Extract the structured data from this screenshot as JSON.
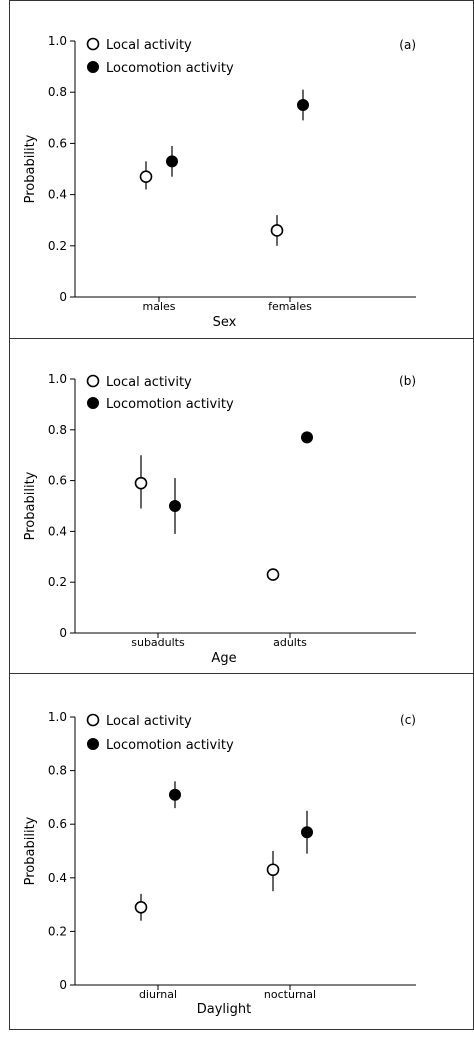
{
  "chart_data": [
    {
      "type": "scatter",
      "panel_label": "(a)",
      "xlabel": "Sex",
      "ylabel": "Probability",
      "categories": [
        "males",
        "females"
      ],
      "ylim": [
        0,
        1.0
      ],
      "yticks": [
        "0",
        "0.2",
        "0.4",
        "0.6",
        "0.8",
        "1.0"
      ],
      "legend": "top-left",
      "series": [
        {
          "name": "Local activity",
          "marker": "open",
          "values": [
            0.47,
            0.26
          ],
          "lower": [
            0.42,
            0.2
          ],
          "upper": [
            0.53,
            0.32
          ]
        },
        {
          "name": "Locomotion activity",
          "marker": "filled",
          "values": [
            0.53,
            0.75
          ],
          "lower": [
            0.47,
            0.69
          ],
          "upper": [
            0.59,
            0.81
          ]
        }
      ]
    },
    {
      "type": "scatter",
      "panel_label": "(b)",
      "xlabel": "Age",
      "ylabel": "Probability",
      "categories": [
        "subadults",
        "adults"
      ],
      "ylim": [
        0,
        1.0
      ],
      "yticks": [
        "0",
        "0.2",
        "0.4",
        "0.6",
        "0.8",
        "1.0"
      ],
      "legend": "top-left",
      "series": [
        {
          "name": "Local activity",
          "marker": "open",
          "values": [
            0.59,
            0.23
          ],
          "lower": [
            0.49,
            0.23
          ],
          "upper": [
            0.7,
            0.23
          ]
        },
        {
          "name": "Locomotion activity",
          "marker": "filled",
          "values": [
            0.5,
            0.77
          ],
          "lower": [
            0.39,
            0.77
          ],
          "upper": [
            0.61,
            0.77
          ]
        }
      ]
    },
    {
      "type": "scatter",
      "panel_label": "(c)",
      "xlabel": "Daylight",
      "ylabel": "Probability",
      "categories": [
        "diurnal",
        "nocturnal"
      ],
      "ylim": [
        0,
        1.0
      ],
      "yticks": [
        "0",
        "0.2",
        "0.4",
        "0.6",
        "0.8",
        "1.0"
      ],
      "legend": "top-left",
      "series": [
        {
          "name": "Local activity",
          "marker": "open",
          "values": [
            0.29,
            0.43
          ],
          "lower": [
            0.24,
            0.35
          ],
          "upper": [
            0.34,
            0.5
          ]
        },
        {
          "name": "Locomotion activity",
          "marker": "filled",
          "values": [
            0.71,
            0.57
          ],
          "lower": [
            0.66,
            0.49
          ],
          "upper": [
            0.76,
            0.65
          ]
        }
      ]
    }
  ]
}
